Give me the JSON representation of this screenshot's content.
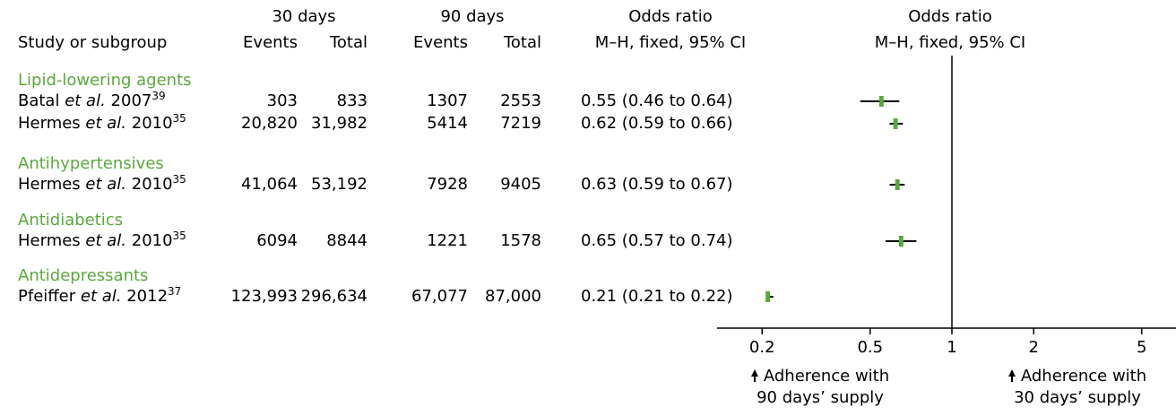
{
  "header": {
    "group_30": "30 days",
    "group_90": "90 days",
    "study_col": "Study or subgroup",
    "events": "Events",
    "total": "Total",
    "or_title": "Odds ratio",
    "or_method": "M–H, fixed, 95% CI",
    "plot_title": "Odds ratio",
    "plot_method": "M–H, fixed, 95% CI"
  },
  "groups": [
    {
      "name": "Lipid-lowering agents",
      "rows": [
        {
          "author": "Batal",
          "etal": "et al.",
          "year": "2007",
          "ref": "39",
          "e30": "303",
          "t30": "833",
          "e90": "1307",
          "t90": "2553",
          "or_text": "0.55 (0.46 to 0.64)",
          "or": 0.55,
          "lo": 0.46,
          "hi": 0.64
        },
        {
          "author": "Hermes",
          "etal": "et al.",
          "year": "2010",
          "ref": "35",
          "e30": "20,820",
          "t30": "31,982",
          "e90": "5414",
          "t90": "7219",
          "or_text": "0.62 (0.59 to 0.66)",
          "or": 0.62,
          "lo": 0.59,
          "hi": 0.66
        }
      ]
    },
    {
      "name": "Antihypertensives",
      "rows": [
        {
          "author": "Hermes",
          "etal": "et al.",
          "year": "2010",
          "ref": "35",
          "e30": "41,064",
          "t30": "53,192",
          "e90": "7928",
          "t90": "9405",
          "or_text": "0.63 (0.59 to 0.67)",
          "or": 0.63,
          "lo": 0.59,
          "hi": 0.67
        }
      ]
    },
    {
      "name": "Antidiabetics",
      "rows": [
        {
          "author": "Hermes",
          "etal": "et al.",
          "year": "2010",
          "ref": "35",
          "e30": "6094",
          "t30": "8844",
          "e90": "1221",
          "t90": "1578",
          "or_text": "0.65 (0.57 to 0.74)",
          "or": 0.65,
          "lo": 0.57,
          "hi": 0.74
        }
      ]
    },
    {
      "name": "Antidepressants",
      "rows": [
        {
          "author": "Pfeiffer",
          "etal": "et al.",
          "year": "2012",
          "ref": "37",
          "e30": "123,993",
          "t30": "296,634",
          "e90": "67,077",
          "t90": "87,000",
          "or_text": "0.21 (0.21 to 0.22)",
          "or": 0.21,
          "lo": 0.21,
          "hi": 0.22
        }
      ]
    }
  ],
  "chart_data": {
    "type": "forest",
    "scale": "log",
    "xlim": [
      0.2,
      5
    ],
    "ticks": [
      0.2,
      0.5,
      1,
      2,
      5
    ],
    "tick_labels": [
      "0.2",
      "0.5",
      "1",
      "2",
      "5"
    ],
    "null_value": 1,
    "colors": {
      "point": "#5aa83b",
      "ci": "#000000",
      "group": "#5aa83b"
    },
    "legend_left": "Adherence with\n90 days' supply",
    "legend_right": "Adherence with\n30 days' supply"
  },
  "legend": {
    "left_line1": "Adherence with",
    "left_line2": "90 days’ supply",
    "right_line1": "Adherence with",
    "right_line2": "30 days’ supply"
  }
}
